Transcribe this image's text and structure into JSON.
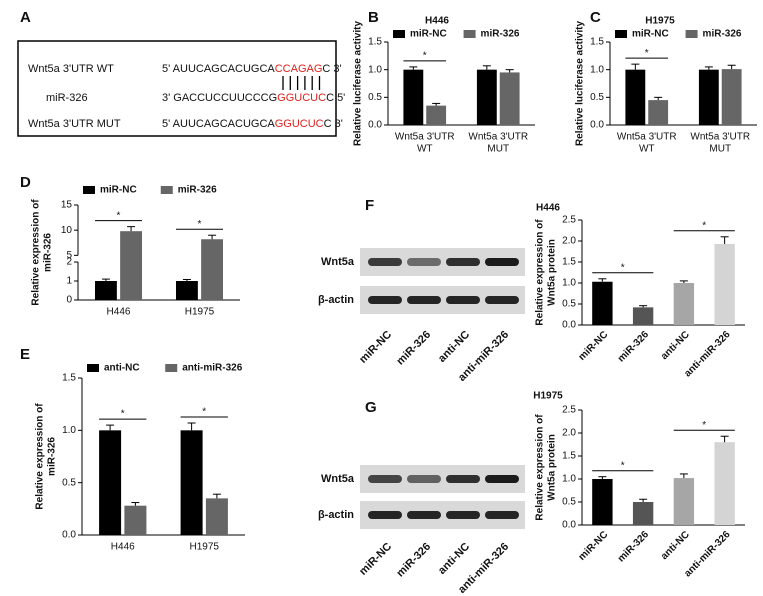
{
  "sequence_panel": {
    "panel": "A",
    "rows": [
      {
        "label": "Wnt5a 3'UTR WT",
        "prefix": "5' AUUCAGCACUGCA",
        "highlight": "CCAGAG",
        "suffix": "C 3'"
      },
      {
        "label": "miR-326",
        "prefix": "3' GACCUCCUUCCCG",
        "highlight": "GGUCUC",
        "suffix": "C 5'"
      },
      {
        "label": "Wnt5a 3'UTR MUT",
        "prefix": "5' AUUCAGCACUGCA",
        "highlight": "GGUCUC",
        "suffix": "C  3'"
      }
    ]
  },
  "blots": [
    {
      "rows": [
        "Wnt5a",
        "β-actin"
      ],
      "lanes": [
        "miR-NC",
        "miR-326",
        "anti-NC",
        "anti-miR-326"
      ]
    },
    {
      "rows": [
        "Wnt5a",
        "β-actin"
      ],
      "lanes": [
        "miR-NC",
        "miR-326",
        "anti-NC",
        "anti-miR-326"
      ]
    }
  ],
  "chart_data": [
    {
      "type": "bar",
      "panel": "B",
      "title": "H446",
      "ylabel": [
        "Relative luciferase activity"
      ],
      "categories": [
        [
          "Wnt5a 3'UTR",
          "WT"
        ],
        [
          "Wnt5a 3'UTR",
          "MUT"
        ]
      ],
      "series": [
        {
          "name": "miR-NC",
          "color": "#000000",
          "values": [
            1.0,
            1.0
          ],
          "errors": [
            0.05,
            0.07
          ]
        },
        {
          "name": "miR-326",
          "color": "#666666",
          "values": [
            0.35,
            0.95
          ],
          "errors": [
            0.04,
            0.05
          ]
        }
      ],
      "ylim": [
        0,
        1.5
      ],
      "yticks": [
        {
          "value": 0,
          "label": "0.0"
        },
        0.5,
        {
          "value": 1,
          "label": "1.0"
        },
        1.5
      ],
      "annotations": [
        "*"
      ]
    },
    {
      "type": "bar",
      "panel": "C",
      "title": "H1975",
      "ylabel": [
        "Relative luciferase activity"
      ],
      "categories": [
        [
          "Wnt5a 3'UTR",
          "WT"
        ],
        [
          "Wnt5a 3'UTR",
          "MUT"
        ]
      ],
      "series": [
        {
          "name": "miR-NC",
          "color": "#000000",
          "values": [
            1.0,
            1.0
          ],
          "errors": [
            0.1,
            0.05
          ]
        },
        {
          "name": "miR-326",
          "color": "#666666",
          "values": [
            0.45,
            1.01
          ],
          "errors": [
            0.05,
            0.07
          ]
        }
      ],
      "ylim": [
        0,
        1.5
      ],
      "yticks": [
        {
          "value": 0,
          "label": "0.0"
        },
        0.5,
        {
          "value": 1,
          "label": "1.0"
        },
        1.5
      ],
      "annotations": [
        "*"
      ]
    },
    {
      "type": "bar",
      "panel": "D",
      "ylabel": [
        "Relative expression of",
        "miR-326"
      ],
      "categories": [
        [
          "H446"
        ],
        [
          "H1975"
        ]
      ],
      "series": [
        {
          "name": "miR-NC",
          "color": "#000000",
          "values": [
            1.0,
            1.0
          ],
          "errors": [
            0.1,
            0.08
          ]
        },
        {
          "name": "miR-326",
          "color": "#666666",
          "values": [
            9.8,
            8.2
          ],
          "errors": [
            0.9,
            0.8
          ]
        }
      ],
      "ylim": [
        0,
        15
      ],
      "ybreak": [
        2,
        5
      ],
      "yticks": [
        0,
        1,
        2,
        5,
        10,
        15
      ],
      "annotations": [
        "*",
        "*"
      ]
    },
    {
      "type": "bar",
      "panel": "E",
      "ylabel": [
        "Relative expression of",
        "miR-326"
      ],
      "categories": [
        [
          "H446"
        ],
        [
          "H1975"
        ]
      ],
      "series": [
        {
          "name": "anti-NC",
          "color": "#000000",
          "values": [
            1.0,
            1.0
          ],
          "errors": [
            0.05,
            0.07
          ]
        },
        {
          "name": "anti-miR-326",
          "color": "#666666",
          "values": [
            0.28,
            0.35
          ],
          "errors": [
            0.03,
            0.04
          ]
        }
      ],
      "ylim": [
        0,
        1.5
      ],
      "yticks": [
        {
          "value": 0,
          "label": "0.0"
        },
        0.5,
        {
          "value": 1,
          "label": "1.0"
        },
        1.5
      ],
      "annotations": [
        "*",
        "*"
      ]
    },
    {
      "type": "bar",
      "panel": "F",
      "title": "H446",
      "ylabel": [
        "Relative expression of",
        "Wnt5a protein"
      ],
      "categories": [
        [
          "miR-NC"
        ],
        [
          "miR-326"
        ],
        [
          "anti-NC"
        ],
        [
          "anti-miR-326"
        ]
      ],
      "series": [
        {
          "values": [
            1.03,
            0.42,
            1.0,
            1.93
          ],
          "errors": [
            0.07,
            0.04,
            0.05,
            0.17
          ],
          "colors": [
            "#000000",
            "#555555",
            "#a6a6a6",
            "#d4d4d4"
          ]
        }
      ],
      "ylim": [
        0,
        2.5
      ],
      "yticks": [
        {
          "value": 0,
          "label": "0.0"
        },
        0.5,
        {
          "value": 1,
          "label": "1.0"
        },
        1.5,
        {
          "value": 2,
          "label": "2.0"
        },
        2.5
      ],
      "annotations": [
        "*",
        "*"
      ]
    },
    {
      "type": "bar",
      "panel": "G",
      "title": "H1975",
      "ylabel": [
        "Relative expression of",
        "Wnt5a protein"
      ],
      "categories": [
        [
          "miR-NC"
        ],
        [
          "miR-326"
        ],
        [
          "anti-NC"
        ],
        [
          "anti-miR-326"
        ]
      ],
      "series": [
        {
          "values": [
            1.0,
            0.5,
            1.02,
            1.8
          ],
          "errors": [
            0.05,
            0.06,
            0.09,
            0.13
          ],
          "colors": [
            "#000000",
            "#555555",
            "#a6a6a6",
            "#d4d4d4"
          ]
        }
      ],
      "ylim": [
        0,
        2.5
      ],
      "yticks": [
        {
          "value": 0,
          "label": "0.0"
        },
        0.5,
        {
          "value": 1,
          "label": "1.0"
        },
        1.5,
        {
          "value": 2,
          "label": "2.0"
        },
        2.5
      ],
      "annotations": [
        "*",
        "*"
      ]
    }
  ]
}
